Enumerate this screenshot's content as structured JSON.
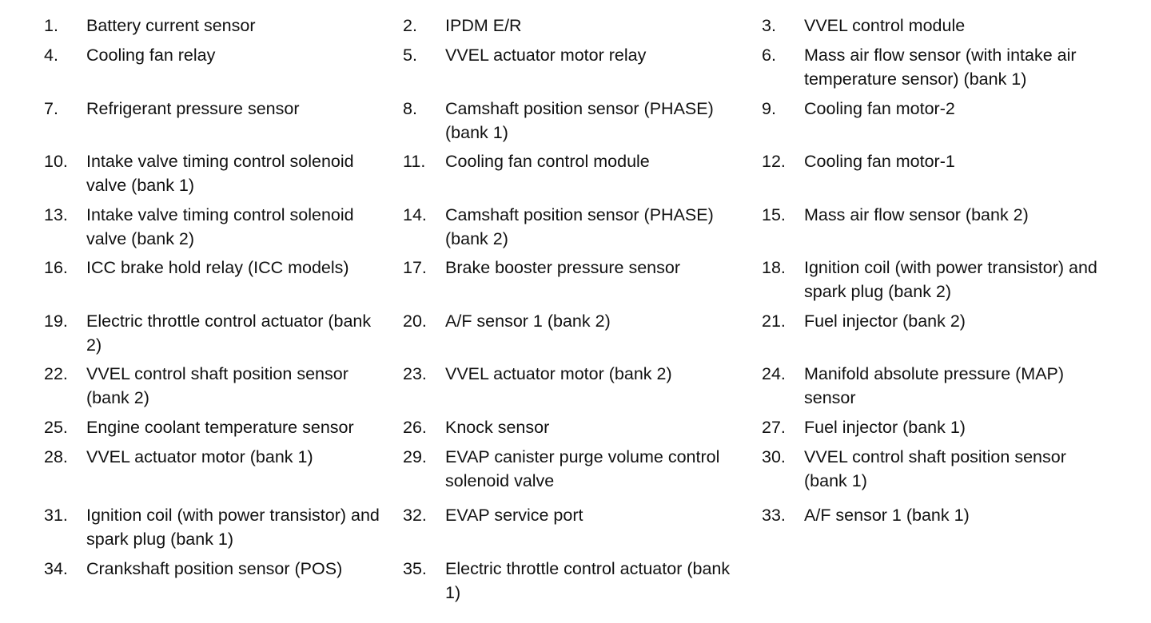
{
  "items": [
    {
      "num": "1.",
      "label": "Battery current sensor"
    },
    {
      "num": "2.",
      "label": "IPDM E/R"
    },
    {
      "num": "3.",
      "label": "VVEL control module"
    },
    {
      "num": "4.",
      "label": "Cooling fan relay"
    },
    {
      "num": "5.",
      "label": "VVEL actuator motor relay"
    },
    {
      "num": "6.",
      "label": "Mass air flow sensor (with intake air temperature sensor) (bank 1)"
    },
    {
      "num": "7.",
      "label": "Refrigerant pressure sensor"
    },
    {
      "num": "8.",
      "label": "Camshaft position sensor (PHASE) (bank 1)"
    },
    {
      "num": "9.",
      "label": "Cooling fan motor-2"
    },
    {
      "num": "10.",
      "label": "Intake valve timing control solenoid valve (bank 1)"
    },
    {
      "num": "11.",
      "label": "Cooling fan control module"
    },
    {
      "num": "12.",
      "label": "Cooling fan motor-1"
    },
    {
      "num": "13.",
      "label": "Intake valve timing control solenoid valve (bank 2)"
    },
    {
      "num": "14.",
      "label": "Camshaft position sensor (PHASE) (bank 2)"
    },
    {
      "num": "15.",
      "label": "Mass air flow sensor (bank 2)"
    },
    {
      "num": "16.",
      "label": "ICC brake hold relay (ICC models)"
    },
    {
      "num": "17.",
      "label": "Brake booster pressure sensor"
    },
    {
      "num": "18.",
      "label": "Ignition coil (with power transistor) and spark plug (bank 2)"
    },
    {
      "num": "19.",
      "label": "Electric throttle control actuator (bank 2)"
    },
    {
      "num": "20.",
      "label": "A/F sensor 1 (bank 2)"
    },
    {
      "num": "21.",
      "label": "Fuel injector (bank 2)"
    },
    {
      "num": "22.",
      "label": "VVEL control shaft position sensor (bank 2)"
    },
    {
      "num": "23.",
      "label": "VVEL actuator motor (bank 2)"
    },
    {
      "num": "24.",
      "label": "Manifold absolute pressure (MAP) sensor"
    },
    {
      "num": "25.",
      "label": "Engine coolant temperature sensor"
    },
    {
      "num": "26.",
      "label": "Knock sensor"
    },
    {
      "num": "27.",
      "label": "Fuel injector (bank 1)"
    },
    {
      "num": "28.",
      "label": "VVEL actuator motor (bank 1)"
    },
    {
      "num": "29.",
      "label": "EVAP canister purge volume control solenoid valve"
    },
    {
      "num": "30.",
      "label": "VVEL control shaft position sensor (bank 1)"
    },
    {
      "num": "31.",
      "label": "Ignition coil (with power transistor) and spark plug (bank 1)"
    },
    {
      "num": "32.",
      "label": "EVAP service port"
    },
    {
      "num": "33.",
      "label": "A/F sensor 1 (bank 1)"
    },
    {
      "num": "34.",
      "label": "Crankshaft position sensor (POS)"
    },
    {
      "num": "35.",
      "label": "Electric throttle control actuator (bank 1)"
    }
  ]
}
